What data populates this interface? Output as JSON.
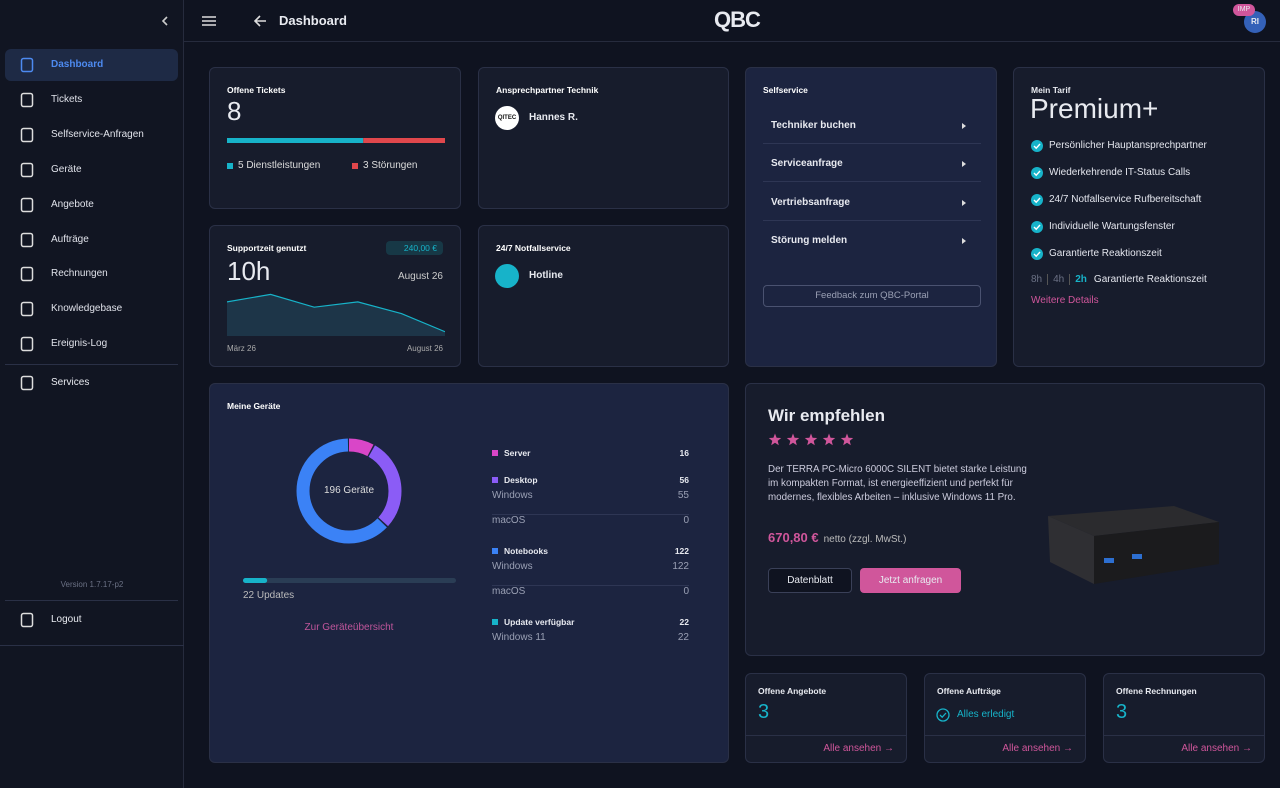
{
  "header": {
    "title": "Dashboard",
    "logo": "QBC",
    "badge": "IMP",
    "avatar": "RI"
  },
  "sidebar": {
    "items": [
      "Dashboard",
      "Tickets",
      "Selfservice-Anfragen",
      "Geräte",
      "Angebote",
      "Aufträge",
      "Rechnungen",
      "Knowledgebase",
      "Ereignis-Log"
    ],
    "services": "Services",
    "version": "Version 1.7.17-p2",
    "logout": "Logout"
  },
  "tickets": {
    "title": "Offene Tickets",
    "total": 8,
    "segments": [
      {
        "label": "5 Dienstleistungen",
        "value": 5,
        "color": "#17b3c9"
      },
      {
        "label": "3 Störungen",
        "value": 3,
        "color": "#e0474c"
      }
    ]
  },
  "contact": {
    "title": "Ansprechpartner Technik",
    "logo": "QITEC",
    "name": "Hannes R."
  },
  "support": {
    "title": "Supportzeit genutzt",
    "amount": "240,00 €",
    "hours": "10h",
    "period": "August 26",
    "x_labels": [
      "März 26",
      "August 26"
    ],
    "values": [
      3.2,
      3.9,
      2.7,
      3.2,
      2.1,
      0.4
    ],
    "ylim": [
      0,
      4.5
    ],
    "color": "#17b3c9"
  },
  "notfall": {
    "title": "24/7 Notfallservice",
    "name": "Hotline"
  },
  "selfservice": {
    "title": "Selfservice",
    "items": [
      "Techniker buchen",
      "Serviceanfrage",
      "Vertriebsanfrage",
      "Störung melden"
    ],
    "feedback": "Feedback zum QBC-Portal"
  },
  "tarif": {
    "label": "Mein Tarif",
    "name": "Premium+",
    "features": [
      "Persönlicher Hauptansprechpartner",
      "Wiederkehrende IT-Status Calls",
      "24/7 Notfallservice Rufbereitschaft",
      "Individuelle Wartungsfenster",
      "Garantierte Reaktionszeit"
    ],
    "times": [
      "8h",
      "4h",
      "2h"
    ],
    "times_label": "Garantierte Reaktionszeit",
    "link": "Weitere Details"
  },
  "devices": {
    "title": "Meine Geräte",
    "center": "196 Geräte",
    "groups": [
      {
        "name": "Server",
        "value": 16,
        "color": "#d946c8",
        "sub": []
      },
      {
        "name": "Desktop",
        "value": 56,
        "color": "#8b5cf6",
        "sub": [
          {
            "name": "Windows",
            "value": 55
          },
          {
            "name": "macOS",
            "value": 0
          }
        ]
      },
      {
        "name": "Notebooks",
        "value": 122,
        "color": "#3b82f6",
        "sub": [
          {
            "name": "Windows",
            "value": 122
          },
          {
            "name": "macOS",
            "value": 0
          }
        ]
      }
    ],
    "updates": {
      "name": "Update verfügbar",
      "value": 22,
      "color": "#17b3c9",
      "label": "22 Updates",
      "sub": [
        {
          "name": "Windows 11",
          "value": 22
        }
      ]
    },
    "link": "Zur Geräteübersicht"
  },
  "recommend": {
    "title": "Wir empfehlen",
    "rating": 5,
    "description": "Der TERRA PC-Micro 6000C SILENT bietet starke Leistung im kompakten Format, ist energieeffizient und perfekt für modernes, flexibles Arbeiten – inklusive Windows 11 Pro.",
    "price": "670,80 €",
    "price_note": "netto (zzgl. MwSt.)",
    "buttons": [
      "Datenblatt",
      "Jetzt anfragen"
    ]
  },
  "summary": [
    {
      "title": "Offene Angebote",
      "value": 3,
      "link": "Alle ansehen →"
    },
    {
      "title": "Offene Aufträge",
      "status": "Alles erledigt",
      "link": "Alle ansehen →"
    },
    {
      "title": "Offene Rechnungen",
      "value": 3,
      "link": "Alle ansehen →"
    }
  ]
}
